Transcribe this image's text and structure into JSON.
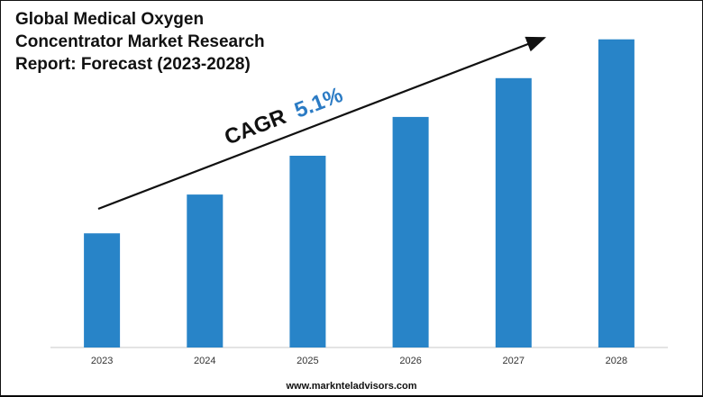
{
  "chart_data": {
    "type": "bar",
    "title": "Global Medical Oxygen Concentrator Market Research Report: Forecast (2023-2028)",
    "categories": [
      "2023",
      "2024",
      "2025",
      "2026",
      "2027",
      "2028"
    ],
    "values": [
      1.0,
      1.34,
      1.68,
      2.02,
      2.36,
      2.7
    ],
    "ylim": [
      0,
      2.8
    ],
    "grid": false,
    "legend": "none",
    "bar_color": "#2884C8",
    "annotation": {
      "prefix": "CAGR",
      "value": "5.1%",
      "value_color": "#2B7BC4"
    }
  },
  "footer": {
    "website": "www.marknteladvisors.com"
  }
}
